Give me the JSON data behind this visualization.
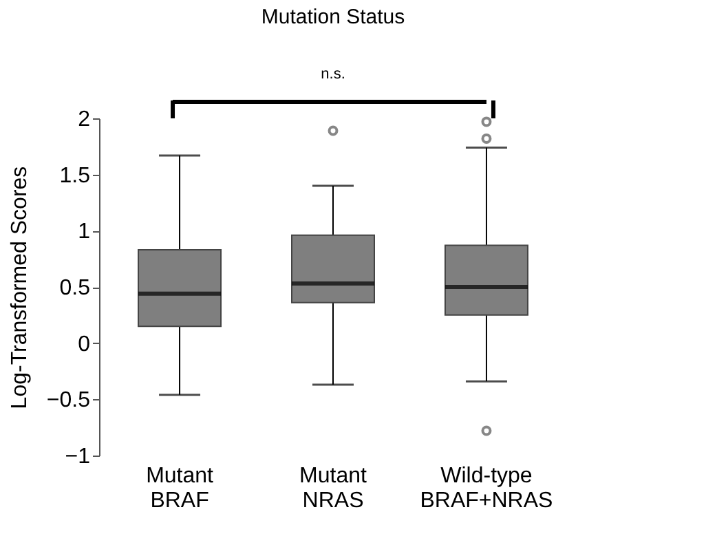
{
  "chart_data": {
    "type": "box",
    "title": "Mutation Status",
    "ylabel": "Log-Transformed Scores",
    "categories": [
      "Mutant\nBRAF",
      "Mutant\nNRAS",
      "Wild-type\nBRAF+NRAS"
    ],
    "boxes": [
      {
        "low": -0.46,
        "q1": 0.15,
        "median": 0.44,
        "q3": 0.83,
        "high": 1.67
      },
      {
        "low": -0.37,
        "q1": 0.36,
        "median": 0.53,
        "q3": 0.96,
        "high": 1.4,
        "outliers": [
          1.89
        ]
      },
      {
        "low": -0.34,
        "q1": 0.25,
        "median": 0.5,
        "q3": 0.87,
        "high": 1.74,
        "outliers": [
          1.97,
          1.82,
          -0.78
        ]
      }
    ],
    "color": "#7f7f7f",
    "ylim": [
      -1,
      2
    ],
    "yticks": [
      -1,
      -0.5,
      0,
      0.5,
      1,
      1.5,
      2
    ],
    "grid": false,
    "annotations": [
      "n.s."
    ]
  }
}
